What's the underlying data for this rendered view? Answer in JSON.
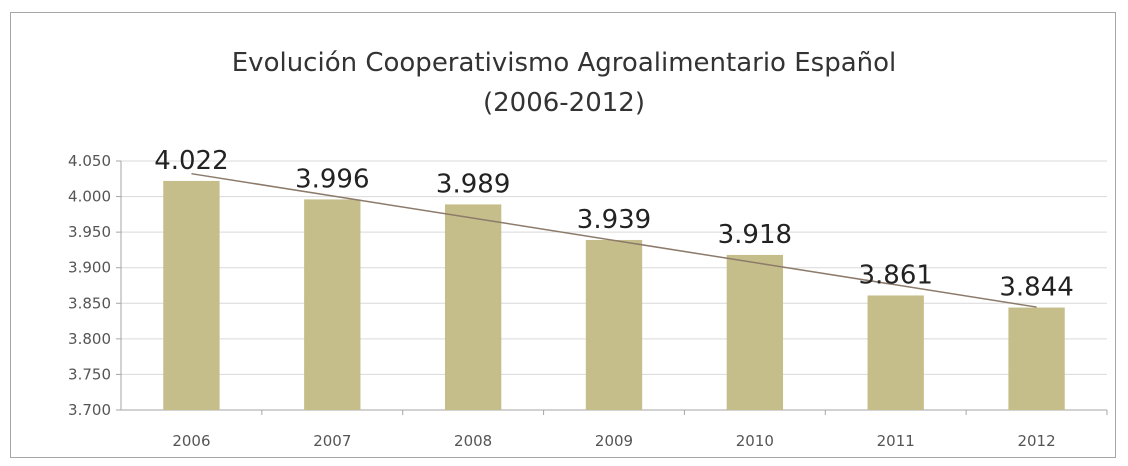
{
  "chart_data": {
    "type": "bar",
    "title": "Evolución Cooperativismo Agroalimentario Español",
    "subtitle": "(2006-2012)",
    "categories": [
      "2006",
      "2007",
      "2008",
      "2009",
      "2010",
      "2011",
      "2012"
    ],
    "values": [
      4022,
      3996,
      3989,
      3939,
      3918,
      3861,
      3844
    ],
    "data_labels": [
      "4.022",
      "3.996",
      "3.989",
      "3.939",
      "3.918",
      "3.861",
      "3.844"
    ],
    "ylim": [
      3700,
      4050
    ],
    "yticks": [
      3700,
      3750,
      3800,
      3850,
      3900,
      3950,
      4000,
      4050
    ],
    "ytick_labels": [
      "3.700",
      "3.750",
      "3.800",
      "3.850",
      "3.900",
      "3.950",
      "4.000",
      "4.050"
    ],
    "trendline": "linear",
    "grid": true,
    "legend": false,
    "xlabel": "",
    "ylabel": "",
    "colors": {
      "bar": "#c5be8a",
      "trendline": "#8c7a6a",
      "grid": "#d9d9d9",
      "axis": "#a6a6a6"
    }
  }
}
